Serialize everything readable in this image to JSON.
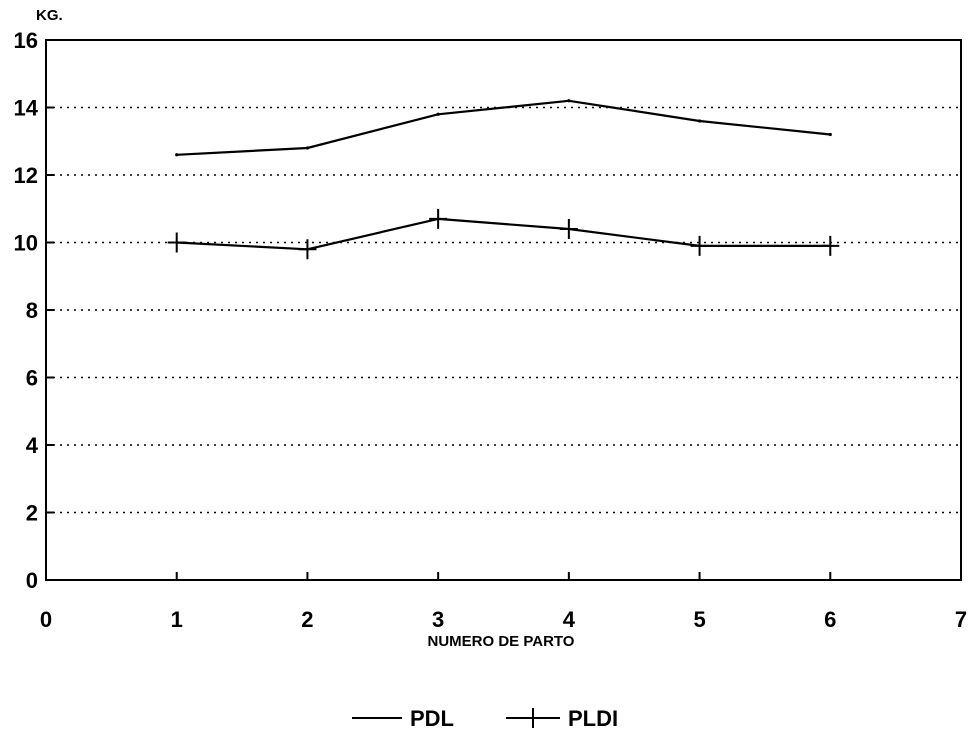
{
  "chart_data": {
    "type": "line",
    "ylabel": "KG.",
    "xlabel": "NUMERO DE PARTO",
    "xlim": [
      0,
      7
    ],
    "ylim": [
      0,
      16
    ],
    "x_ticks": [
      "0",
      "1",
      "2",
      "3",
      "4",
      "5",
      "6",
      "7"
    ],
    "y_ticks": [
      "0",
      "2",
      "4",
      "6",
      "8",
      "10",
      "12",
      "14",
      "16"
    ],
    "grid": "horizontal-dotted",
    "legend_position": "bottom-center",
    "x": [
      1,
      2,
      3,
      4,
      5,
      6
    ],
    "series": [
      {
        "name": "PDL",
        "marker": "none",
        "values": [
          12.6,
          12.8,
          13.8,
          14.2,
          13.6,
          13.2
        ]
      },
      {
        "name": "PLDI",
        "marker": "plus",
        "values": [
          10.0,
          9.8,
          10.7,
          10.4,
          9.9,
          9.9
        ]
      }
    ]
  }
}
